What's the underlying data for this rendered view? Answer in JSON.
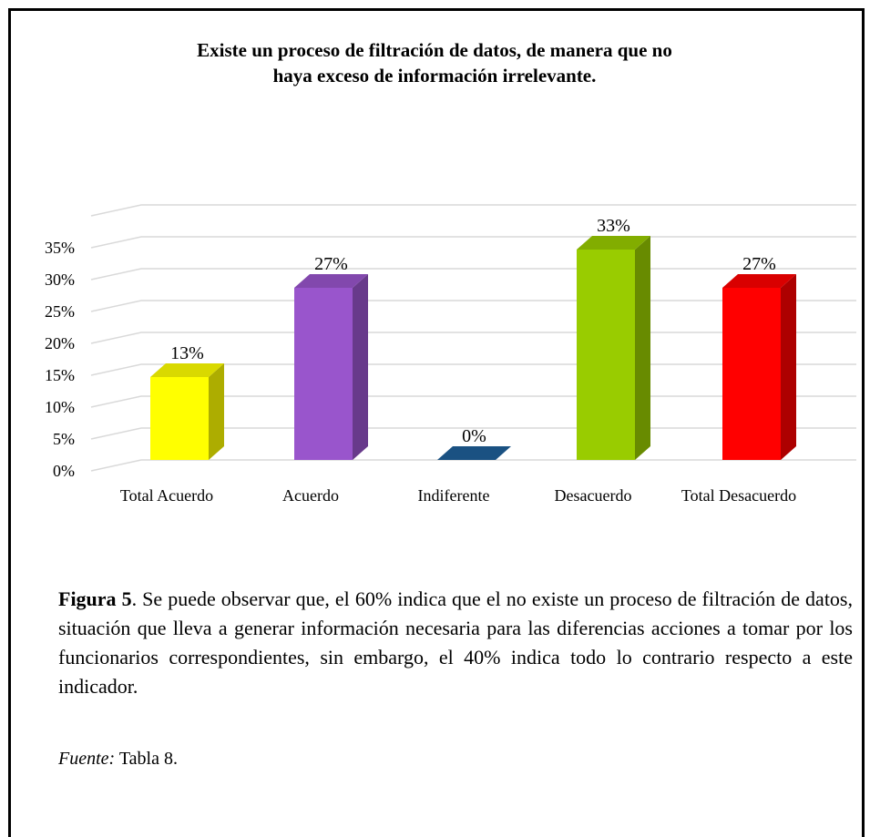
{
  "chart_data": {
    "type": "bar3d",
    "title": [
      "Existe un proceso de filtración de datos, de manera que no",
      "haya exceso de información irrelevante."
    ],
    "categories": [
      "Total Acuerdo",
      "Acuerdo",
      "Indiferente",
      "Desacuerdo",
      "Total Desacuerdo"
    ],
    "values": [
      13,
      27,
      0,
      33,
      27
    ],
    "value_labels": [
      "13%",
      "27%",
      "0%",
      "33%",
      "27%"
    ],
    "colors": [
      "#ffff00",
      "#9955cc",
      "#1f5f99",
      "#99cc00",
      "#ff0000"
    ],
    "ylim": [
      0,
      40
    ],
    "yticks": [
      {
        "value": 0,
        "label": "0%"
      },
      {
        "value": 5,
        "label": "5%"
      },
      {
        "value": 10,
        "label": "10%"
      },
      {
        "value": 15,
        "label": "15%"
      },
      {
        "value": 20,
        "label": "20%"
      },
      {
        "value": 25,
        "label": "25%"
      },
      {
        "value": 30,
        "label": "30%"
      },
      {
        "value": 35,
        "label": "35%"
      }
    ],
    "grid": true
  },
  "caption": {
    "figure_label": "Figura 5",
    "text": ".  Se puede observar que, el 60% indica que el no existe un proceso de filtración de datos, situación que lleva a generar información necesaria para las diferencias acciones a tomar por los funcionarios correspondientes, sin embargo, el 40% indica todo lo contrario respecto a este indicador."
  },
  "source": {
    "label": "Fuente:",
    "text": "Tabla 8."
  }
}
